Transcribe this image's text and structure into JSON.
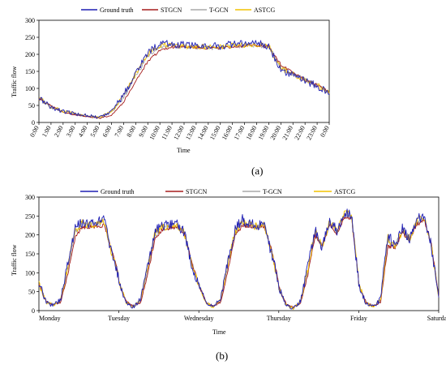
{
  "colors": {
    "Ground truth": "#1f1fb4",
    "STGCN": "#a51d1d",
    "T-GCN": "#a8a8a8",
    "ASTCG": "#f2c200"
  },
  "chart_data": [
    {
      "panel_label": "(a)",
      "type": "line",
      "xlabel": "Time",
      "ylabel": "Traffic flow",
      "ylim": [
        0,
        300
      ],
      "yticks": [
        "0",
        "50",
        "100",
        "150",
        "200",
        "250",
        "300"
      ],
      "x": [
        "0:00",
        "1:00",
        "2:00",
        "3:00",
        "4:00",
        "5:00",
        "6:00",
        "7:00",
        "8:00",
        "9:00",
        "10:00",
        "11:00",
        "12:00",
        "13:00",
        "14:00",
        "15:00",
        "16:00",
        "17:00",
        "18:00",
        "19:00",
        "20:00",
        "21:00",
        "22:00",
        "23:00",
        "0:00"
      ],
      "legend": [
        "Ground truth",
        "STGCN",
        "T-GCN",
        "ASTCG"
      ],
      "legend_position": "top",
      "series": [
        {
          "name": "Ground truth",
          "values": [
            72,
            45,
            32,
            25,
            22,
            14,
            35,
            80,
            145,
            205,
            232,
            230,
            228,
            225,
            225,
            225,
            230,
            232,
            233,
            225,
            155,
            140,
            122,
            108,
            82
          ]
        },
        {
          "name": "STGCN",
          "values": [
            70,
            48,
            30,
            22,
            18,
            12,
            22,
            60,
            122,
            178,
            212,
            222,
            222,
            220,
            218,
            218,
            222,
            225,
            226,
            222,
            170,
            145,
            125,
            110,
            88
          ]
        },
        {
          "name": "T-GCN",
          "values": [
            70,
            46,
            31,
            24,
            20,
            13,
            30,
            72,
            138,
            195,
            222,
            224,
            222,
            220,
            220,
            220,
            224,
            226,
            228,
            222,
            162,
            142,
            124,
            109,
            85
          ]
        },
        {
          "name": "ASTCG",
          "values": [
            72,
            46,
            32,
            25,
            21,
            14,
            33,
            76,
            142,
            200,
            226,
            226,
            224,
            222,
            222,
            222,
            226,
            228,
            230,
            224,
            158,
            142,
            124,
            110,
            86
          ]
        }
      ]
    },
    {
      "panel_label": "(b)",
      "type": "line",
      "xlabel": "Time",
      "ylabel": "Traffic flow",
      "ylim": [
        0,
        300
      ],
      "yticks": [
        "0",
        "50",
        "100",
        "150",
        "200",
        "250",
        "300"
      ],
      "x": [
        "Monday",
        "Tuesday",
        "Wednesday",
        "Thursday",
        "Friday",
        "Saturday"
      ],
      "legend": [
        "Ground truth",
        "STGCN",
        "T-GCN",
        "ASTCG"
      ],
      "legend_position": "top",
      "series": [
        {
          "name": "Ground truth",
          "days": [
            [
              75,
              20,
              15,
              30,
              130,
              220,
              235,
              230,
              232,
              240,
              150,
              90
            ],
            [
              80,
              20,
              10,
              30,
              125,
              210,
              225,
              225,
              230,
              205,
              120,
              65
            ],
            [
              70,
              20,
              10,
              30,
              130,
              215,
              240,
              230,
              225,
              230,
              150,
              70
            ],
            [
              60,
              15,
              5,
              25,
              115,
              215,
              165,
              240,
              210,
              260,
              255,
              75
            ],
            [
              70,
              20,
              10,
              30,
              200,
              170,
              215,
              190,
              240,
              250,
              170,
              35
            ]
          ]
        },
        {
          "name": "STGCN",
          "days": [
            [
              70,
              25,
              15,
              22,
              100,
              195,
              220,
              222,
              222,
              225,
              160,
              95
            ],
            [
              75,
              25,
              12,
              22,
              100,
              192,
              215,
              218,
              222,
              205,
              130,
              70
            ],
            [
              68,
              22,
              12,
              22,
              105,
              198,
              225,
              222,
              220,
              222,
              160,
              75
            ],
            [
              62,
              18,
              8,
              20,
              95,
              198,
              170,
              228,
              205,
              245,
              245,
              80
            ],
            [
              68,
              22,
              12,
              22,
              170,
              168,
              205,
              188,
              228,
              238,
              175,
              40
            ]
          ]
        },
        {
          "name": "T-GCN",
          "days": [
            [
              72,
              22,
              15,
              26,
              115,
              210,
              228,
              226,
              228,
              232,
              155,
              92
            ],
            [
              78,
              22,
              11,
              26,
              112,
              202,
              220,
              222,
              226,
              205,
              125,
              68
            ],
            [
              69,
              21,
              11,
              26,
              118,
              206,
              232,
              226,
              222,
              226,
              155,
              72
            ],
            [
              61,
              16,
              6,
              22,
              105,
              206,
              168,
              234,
              208,
              252,
              250,
              78
            ],
            [
              69,
              21,
              11,
              26,
              185,
              169,
              210,
              189,
              234,
              244,
              172,
              38
            ]
          ]
        },
        {
          "name": "ASTCG",
          "days": [
            [
              73,
              21,
              15,
              28,
              122,
              214,
              231,
              228,
              230,
              236,
              152,
              91
            ],
            [
              79,
              21,
              10,
              28,
              118,
              206,
              222,
              224,
              228,
              205,
              122,
              66
            ],
            [
              70,
              20,
              10,
              28,
              124,
              210,
              236,
              228,
              223,
              228,
              152,
              71
            ],
            [
              60,
              15,
              5,
              24,
              110,
              210,
              166,
              237,
              209,
              256,
              252,
              76
            ],
            [
              70,
              20,
              10,
              28,
              192,
              170,
              212,
              190,
              237,
              247,
              171,
              36
            ]
          ]
        }
      ]
    }
  ]
}
